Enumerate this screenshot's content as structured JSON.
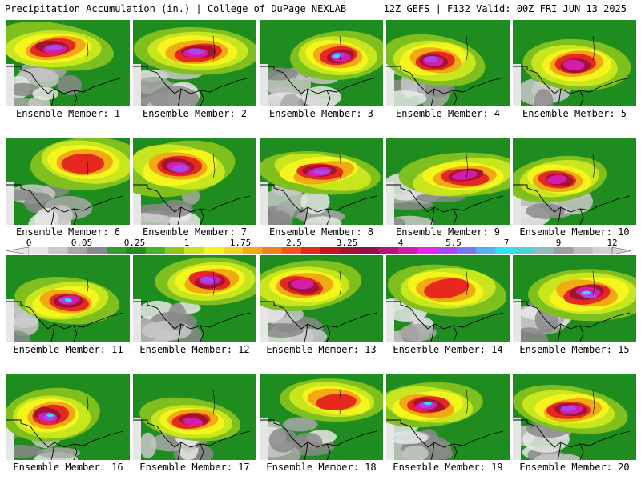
{
  "header": {
    "title_left": "Precipitation Accumulation (in.) | College of DuPage NEXLAB",
    "title_right": "12Z GEFS | F132 Valid: 00Z FRI JUN 13 2025"
  },
  "members": [
    {
      "label": "Ensemble Member: 1",
      "intensity": 3
    },
    {
      "label": "Ensemble Member: 2",
      "intensity": 3
    },
    {
      "label": "Ensemble Member: 3",
      "intensity": 4
    },
    {
      "label": "Ensemble Member: 4",
      "intensity": 3
    },
    {
      "label": "Ensemble Member: 5",
      "intensity": 2
    },
    {
      "label": "Ensemble Member: 6",
      "intensity": 1
    },
    {
      "label": "Ensemble Member: 7",
      "intensity": 3
    },
    {
      "label": "Ensemble Member: 8",
      "intensity": 3
    },
    {
      "label": "Ensemble Member: 9",
      "intensity": 2
    },
    {
      "label": "Ensemble Member: 10",
      "intensity": 2
    },
    {
      "label": "Ensemble Member: 11",
      "intensity": 4
    },
    {
      "label": "Ensemble Member: 12",
      "intensity": 3
    },
    {
      "label": "Ensemble Member: 13",
      "intensity": 2
    },
    {
      "label": "Ensemble Member: 14",
      "intensity": 1
    },
    {
      "label": "Ensemble Member: 15",
      "intensity": 4
    },
    {
      "label": "Ensemble Member: 16",
      "intensity": 4
    },
    {
      "label": "Ensemble Member: 17",
      "intensity": 2
    },
    {
      "label": "Ensemble Member: 18",
      "intensity": 1
    },
    {
      "label": "Ensemble Member: 19",
      "intensity": 4
    },
    {
      "label": "Ensemble Member: 20",
      "intensity": 3
    }
  ],
  "colorbar": {
    "labels": [
      "0",
      "0.05",
      "0.25",
      "1",
      "1.75",
      "2.5",
      "3.25",
      "4",
      "5.5",
      "7",
      "9",
      "12"
    ],
    "colors": [
      "#e6e6e6",
      "#c8c8c8",
      "#a8a8a8",
      "#8a8a8a",
      "#2f9e2f",
      "#1e8c1e",
      "#46b41e",
      "#8cc81e",
      "#c8e61e",
      "#f5f51e",
      "#f5d21e",
      "#f0aa14",
      "#f0821e",
      "#f05a14",
      "#e6281e",
      "#c8141e",
      "#a01432",
      "#8c1446",
      "#b4147a",
      "#d21eaa",
      "#e628e6",
      "#aa46f0",
      "#7878f0",
      "#50b4f0",
      "#28e6f0",
      "#50d2d2",
      "#8cbebe",
      "#a0a0a0",
      "#bebebe",
      "#d2d2d2"
    ]
  }
}
